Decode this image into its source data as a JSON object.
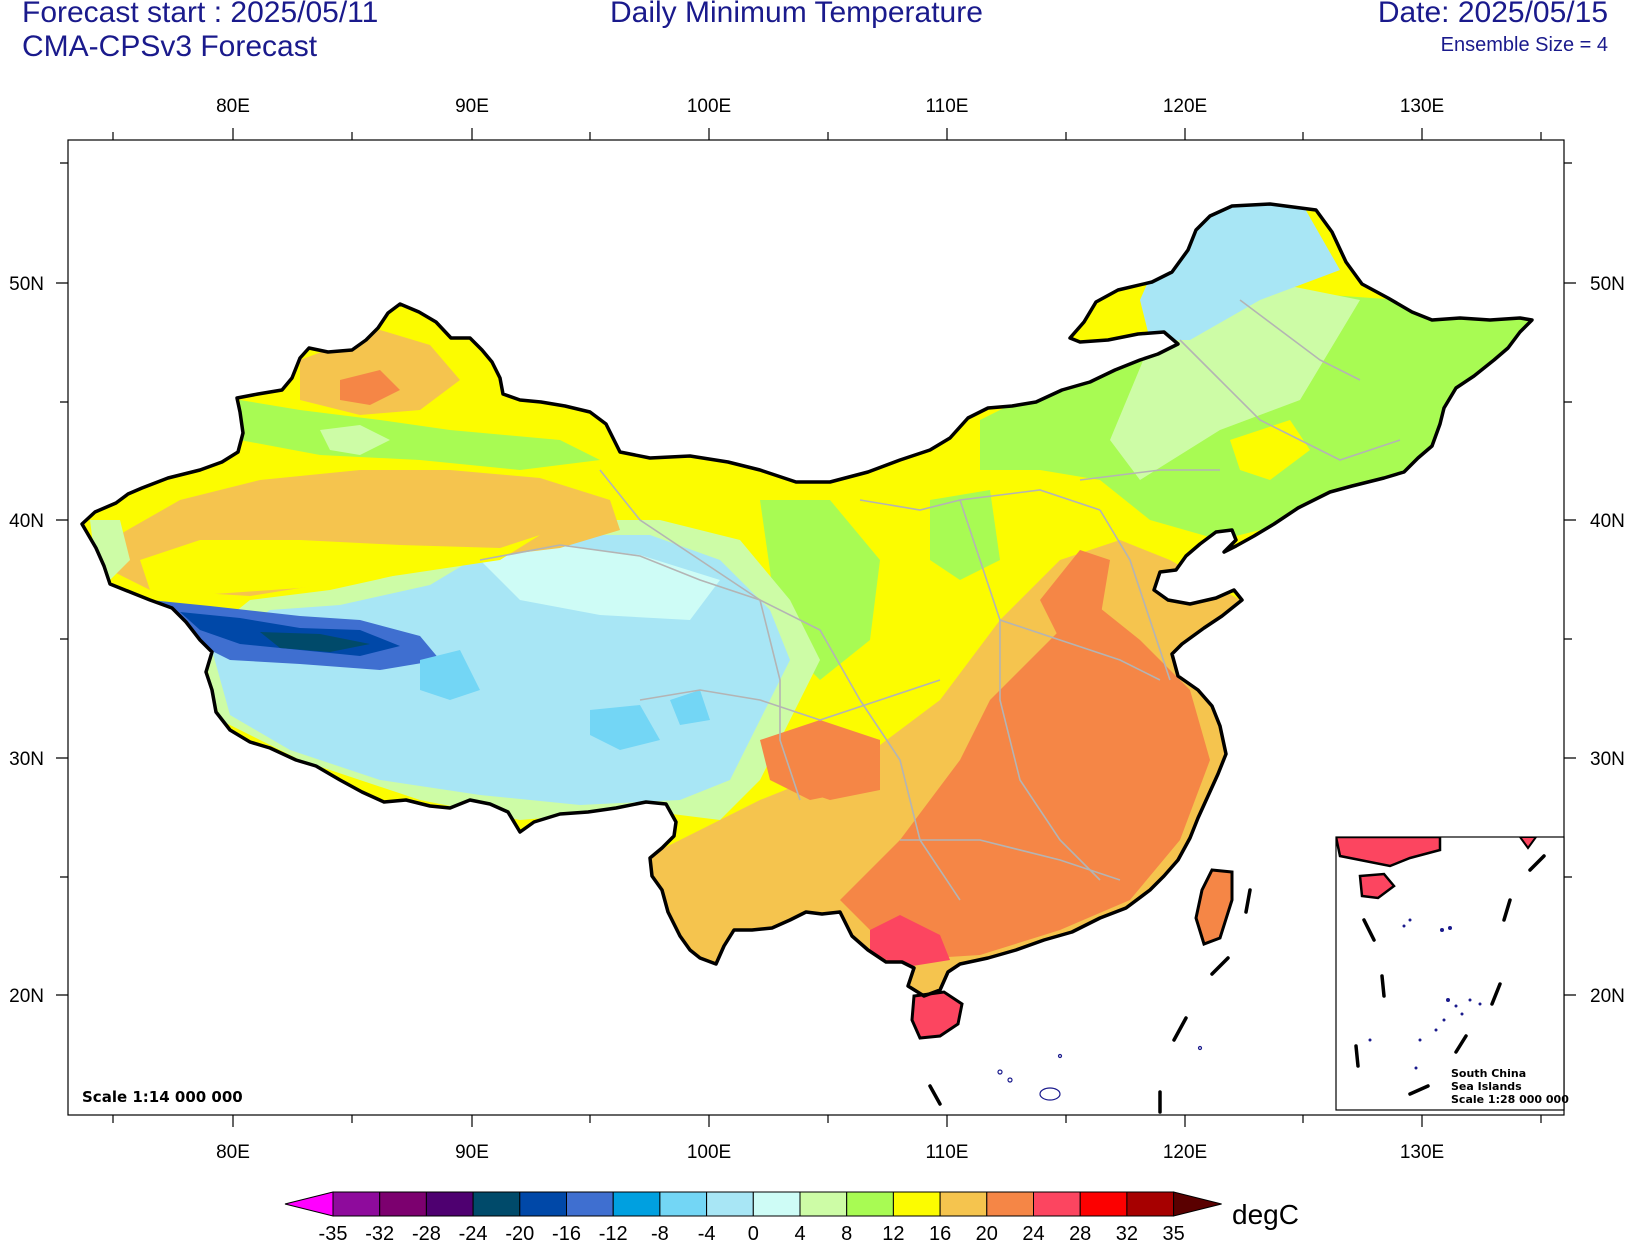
{
  "header": {
    "forecast_start": "Forecast start : 2025/05/11",
    "model": "CMA-CPSv3 Forecast",
    "title": "Daily Minimum Temperature",
    "date": "Date: 2025/05/15",
    "ensemble": "Ensemble Size = 4"
  },
  "axes": {
    "lon_labels": [
      "80E",
      "90E",
      "100E",
      "110E",
      "120E",
      "130E"
    ],
    "lat_labels": [
      "50N",
      "40N",
      "30N",
      "20N"
    ]
  },
  "map": {
    "scale_note": "Scale 1:14 000 000",
    "inset_lines": [
      "South China",
      "Sea Islands",
      "Scale 1:28 000 000"
    ]
  },
  "colorbar": {
    "unit": "degC",
    "ticks": [
      "-35",
      "-32",
      "-28",
      "-24",
      "-20",
      "-16",
      "-12",
      "-8",
      "-4",
      "0",
      "4",
      "8",
      "12",
      "16",
      "20",
      "24",
      "28",
      "32",
      "35"
    ],
    "colors": [
      "#8e0b9c",
      "#7c006f",
      "#4e0070",
      "#004a6a",
      "#0048a8",
      "#3f6fd0",
      "#00a0e0",
      "#73d6f5",
      "#a8e6f5",
      "#cefcf6",
      "#cdfca6",
      "#a8fb53",
      "#fcfc00",
      "#f5c44e",
      "#f58646",
      "#fc4560",
      "#fc0000",
      "#a60000"
    ],
    "left_end_color": "#ff00ff",
    "right_end_color": "#5a0000"
  },
  "colors": {
    "title_text": "#1a1a8c",
    "border": "#000000",
    "province_lines": "#b4b4b4"
  }
}
